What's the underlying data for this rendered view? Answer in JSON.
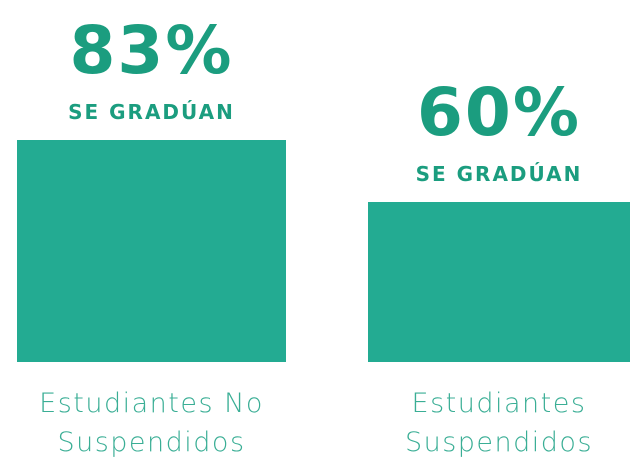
{
  "chart_data": {
    "type": "bar",
    "categories": [
      "Estudiantes No Suspendidos",
      "Estudiantes Suspendidos"
    ],
    "values": [
      83,
      60
    ],
    "value_labels": [
      "83%",
      "60%"
    ],
    "annotations": [
      "SE GRADÚAN",
      "SE GRADÚAN"
    ],
    "color": "#23ab92"
  }
}
